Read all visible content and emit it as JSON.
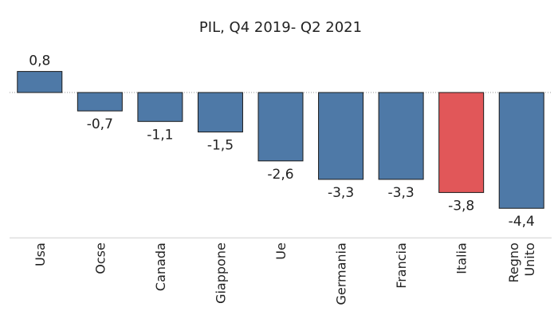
{
  "chart_data": {
    "type": "bar",
    "title": "PIL, Q4 2019- Q2 2021",
    "xlabel": "",
    "ylabel": "",
    "categories": [
      "Usa",
      "Ocse",
      "Canada",
      "Giappone",
      "Ue",
      "Germania",
      "Francia",
      "Italia",
      "Regno Unito"
    ],
    "category_lines": [
      [
        "Usa"
      ],
      [
        "Ocse"
      ],
      [
        "Canada"
      ],
      [
        "Giappone"
      ],
      [
        "Ue"
      ],
      [
        "Germania"
      ],
      [
        "Francia"
      ],
      [
        "Italia"
      ],
      [
        "Regno",
        "Unito"
      ]
    ],
    "values": [
      0.8,
      -0.7,
      -1.1,
      -1.5,
      -2.6,
      -3.3,
      -3.3,
      -3.8,
      -4.4
    ],
    "value_labels": [
      "0,8",
      "-0,7",
      "-1,1",
      "-1,5",
      "-2,6",
      "-3,3",
      "-3,3",
      "-3,8",
      "-4,4"
    ],
    "ylim": [
      -5.4,
      1.0
    ],
    "grid": false,
    "legend": "none",
    "colors": {
      "default": "#4e79a7",
      "highlight": "#e15759"
    },
    "highlight_category": "Italia"
  }
}
